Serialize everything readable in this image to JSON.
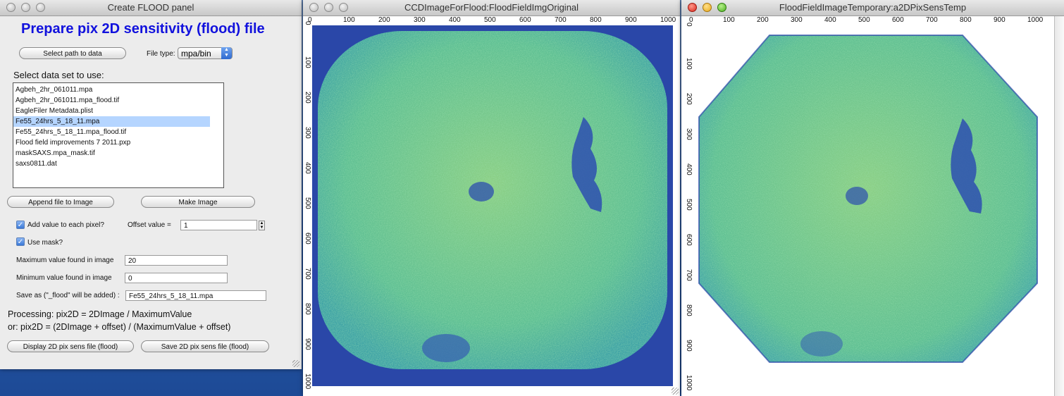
{
  "panel": {
    "window_title": "Create FLOOD panel",
    "heading": "Prepare pix 2D sensitivity (flood) file",
    "select_path_label": "Select path to data",
    "file_type_label": "File type:",
    "file_type_value": "mpa/bin",
    "select_dataset_label": "Select data set to use:",
    "files": [
      "Agbeh_2hr_061011.mpa",
      "Agbeh_2hr_061011.mpa_flood.tif",
      "EagleFiler Metadata.plist",
      "Fe55_24hrs_5_18_11.mpa",
      "Fe55_24hrs_5_18_11.mpa_flood.tif",
      "Flood field improvements 7 2011.pxp",
      "maskSAXS.mpa_mask.tif",
      "saxs0811.dat"
    ],
    "selected_index": 3,
    "append_label": "Append file to Image",
    "make_image_label": "Make Image",
    "add_value_label": "Add value to each pixel?",
    "offset_label": "Offset value =",
    "offset_value": "1",
    "use_mask_label": "Use mask?",
    "max_label": "Maximum value found in image",
    "max_value": "20",
    "min_label": "Minimum value found in image",
    "min_value": "0",
    "save_as_label": "Save as (\"_flood\" will be added) :",
    "save_as_value": "Fe55_24hrs_5_18_11.mpa",
    "processing_line1": "Processing: pix2D = 2DImage / MaximumValue",
    "processing_line2": "or: pix2D = (2DImage + offset) / (MaximumValue + offset)",
    "display_label": "Display 2D pix sens file (flood)",
    "save_label": "Save 2D pix sens file (flood)",
    "checkmark": "✓",
    "stepper_up": "▲",
    "stepper_down": "▼"
  },
  "window2": {
    "title": "CCDImageForFlood:FloodFieldImgOriginal",
    "ticks": [
      "0",
      "100",
      "200",
      "300",
      "400",
      "500",
      "600",
      "700",
      "800",
      "900",
      "1000"
    ]
  },
  "window3": {
    "title": "FloodFieldImageTemporary:a2DPixSensTemp",
    "ticks": [
      "0",
      "100",
      "200",
      "300",
      "400",
      "500",
      "600",
      "700",
      "800",
      "900",
      "1000"
    ]
  },
  "colors": {
    "heading": "#1111dd",
    "image_bg": "#2a47a8",
    "image_fg": "#63c392",
    "selection": "#b5d5ff"
  }
}
